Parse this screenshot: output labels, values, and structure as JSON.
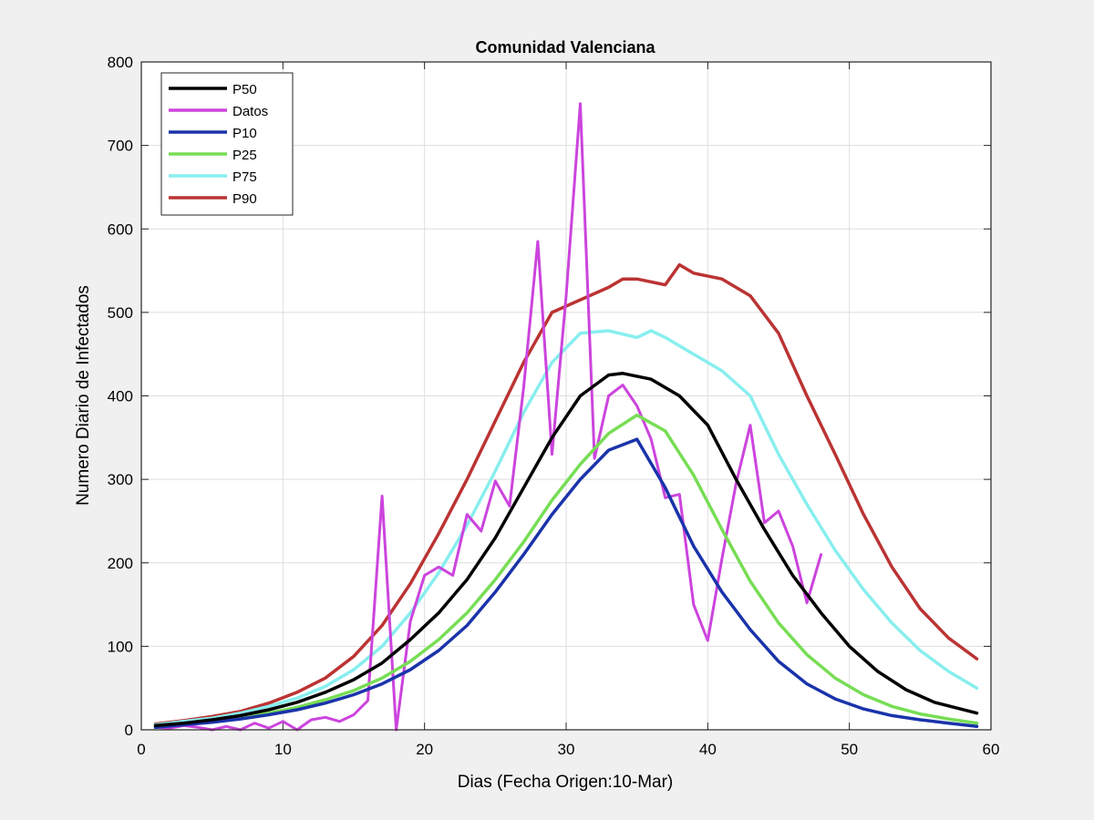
{
  "chart_data": {
    "type": "line",
    "title": "Comunidad Valenciana",
    "xlabel": "Dias (Fecha Origen:10-Mar)",
    "ylabel": "Numero Diario de Infectados",
    "xlim": [
      0,
      60
    ],
    "ylim": [
      0,
      800
    ],
    "xticks": [
      0,
      10,
      20,
      30,
      40,
      50,
      60
    ],
    "yticks": [
      0,
      100,
      200,
      300,
      400,
      500,
      600,
      700,
      800
    ],
    "grid": true,
    "legend_position": "top-left",
    "series": [
      {
        "name": "P50",
        "color": "#000000",
        "x": [
          1,
          3,
          5,
          7,
          9,
          11,
          13,
          15,
          17,
          19,
          21,
          23,
          25,
          27,
          29,
          31,
          33,
          34,
          36,
          38,
          40,
          42,
          44,
          46,
          48,
          50,
          52,
          54,
          56,
          59
        ],
        "y": [
          5,
          8,
          12,
          17,
          24,
          33,
          45,
          60,
          80,
          108,
          140,
          180,
          230,
          290,
          350,
          400,
          425,
          427,
          420,
          400,
          365,
          300,
          240,
          185,
          140,
          100,
          70,
          48,
          33,
          20
        ]
      },
      {
        "name": "Datos",
        "color": "#cc44dd",
        "x": [
          1,
          2,
          3,
          4,
          5,
          6,
          7,
          8,
          9,
          10,
          11,
          12,
          13,
          14,
          15,
          16,
          17,
          18,
          19,
          20,
          21,
          22,
          23,
          24,
          25,
          26,
          27,
          28,
          29,
          30,
          31,
          32,
          33,
          34,
          35,
          36,
          37,
          38,
          39,
          40,
          41,
          42,
          43,
          44,
          45,
          46,
          47,
          48
        ],
        "y": [
          3,
          2,
          5,
          3,
          0,
          4,
          0,
          8,
          2,
          10,
          0,
          12,
          15,
          10,
          18,
          35,
          280,
          0,
          130,
          185,
          195,
          185,
          258,
          238,
          298,
          268,
          410,
          585,
          330,
          520,
          750,
          325,
          400,
          413,
          388,
          348,
          278,
          282,
          150,
          107,
          205,
          295,
          365,
          248,
          262,
          220,
          152,
          210
        ]
      },
      {
        "name": "P10",
        "color": "#1a33aa",
        "x": [
          1,
          3,
          5,
          7,
          9,
          11,
          13,
          15,
          17,
          19,
          21,
          23,
          25,
          27,
          29,
          31,
          33,
          35,
          37,
          39,
          41,
          43,
          45,
          47,
          49,
          51,
          53,
          55,
          57,
          59
        ],
        "y": [
          3,
          6,
          9,
          13,
          18,
          24,
          32,
          42,
          55,
          72,
          95,
          125,
          165,
          210,
          258,
          300,
          335,
          348,
          290,
          220,
          165,
          120,
          82,
          55,
          37,
          25,
          17,
          12,
          8,
          4
        ]
      },
      {
        "name": "P25",
        "color": "#77dd55",
        "x": [
          1,
          3,
          5,
          7,
          9,
          11,
          13,
          15,
          17,
          19,
          21,
          23,
          25,
          27,
          29,
          31,
          33,
          35,
          37,
          39,
          41,
          43,
          45,
          47,
          49,
          51,
          53,
          55,
          57,
          59
        ],
        "y": [
          4,
          7,
          10,
          14,
          20,
          27,
          36,
          47,
          62,
          82,
          108,
          140,
          180,
          225,
          275,
          318,
          355,
          377,
          358,
          305,
          240,
          178,
          128,
          90,
          62,
          42,
          28,
          19,
          13,
          8
        ]
      },
      {
        "name": "P75",
        "color": "#88eeee",
        "x": [
          1,
          3,
          5,
          7,
          9,
          11,
          13,
          15,
          17,
          19,
          21,
          23,
          25,
          27,
          29,
          31,
          33,
          35,
          36,
          37,
          39,
          41,
          43,
          45,
          47,
          49,
          51,
          53,
          55,
          57,
          59
        ],
        "y": [
          6,
          10,
          14,
          20,
          28,
          38,
          52,
          72,
          100,
          140,
          188,
          245,
          310,
          380,
          440,
          475,
          478,
          470,
          478,
          470,
          450,
          430,
          400,
          330,
          270,
          215,
          168,
          128,
          95,
          70,
          50
        ]
      },
      {
        "name": "P90",
        "color": "#bb3333",
        "x": [
          1,
          3,
          5,
          7,
          9,
          11,
          13,
          15,
          17,
          19,
          21,
          23,
          25,
          27,
          29,
          31,
          33,
          34,
          35,
          37,
          38,
          39,
          41,
          43,
          45,
          47,
          49,
          51,
          53,
          55,
          57,
          59
        ],
        "y": [
          7,
          11,
          16,
          22,
          32,
          45,
          62,
          88,
          125,
          175,
          235,
          300,
          370,
          440,
          500,
          515,
          530,
          540,
          540,
          533,
          557,
          547,
          540,
          520,
          475,
          400,
          330,
          258,
          195,
          145,
          110,
          85
        ]
      }
    ]
  }
}
